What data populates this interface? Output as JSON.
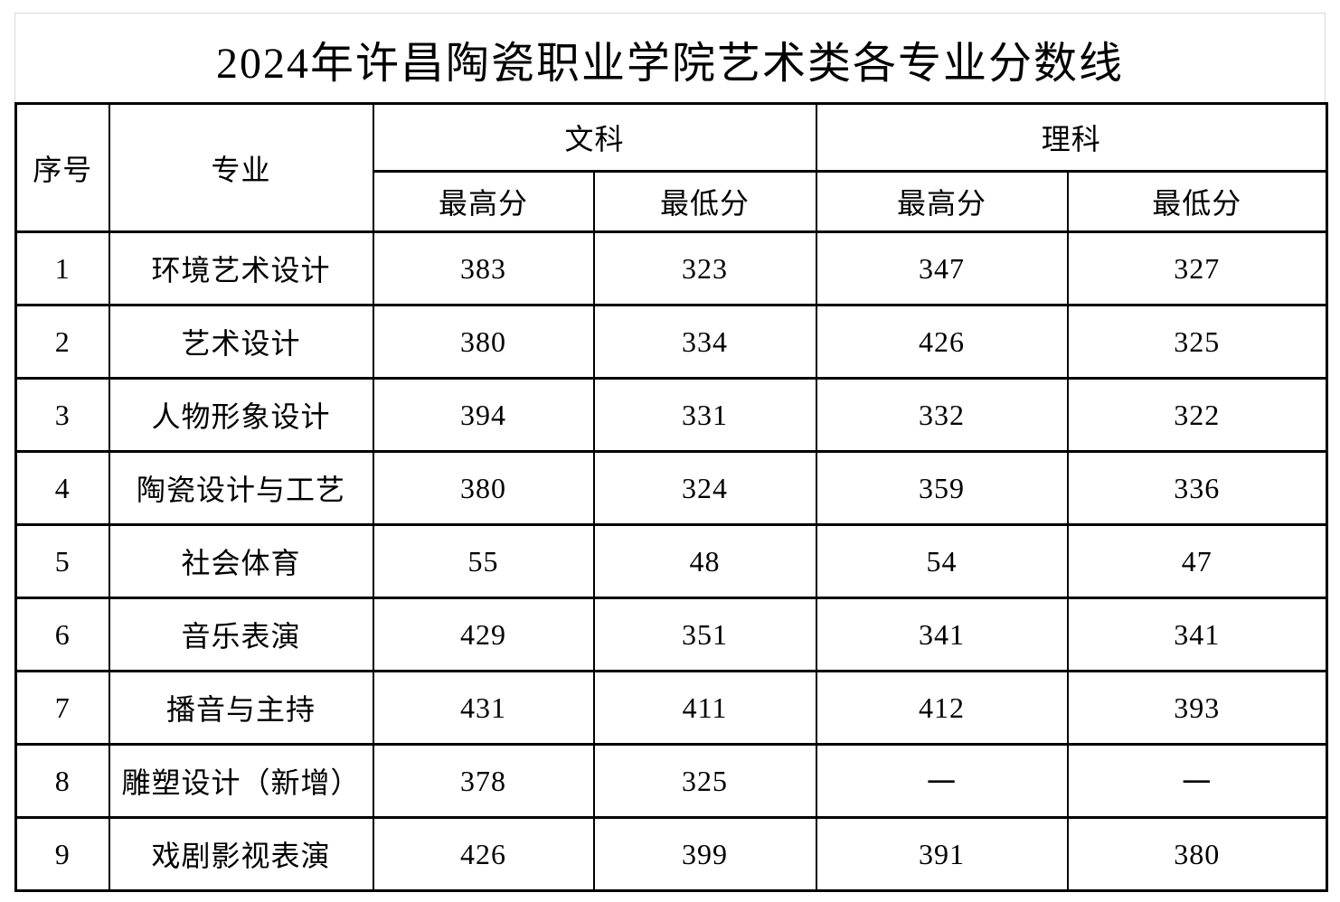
{
  "title": "2024年许昌陶瓷职业学院艺术类各专业分数线",
  "colors": {
    "table_border": "#000000",
    "title_box_border": "#d9d9d9",
    "background": "#ffffff",
    "text": "#000000"
  },
  "table": {
    "headers": {
      "index": "序号",
      "major": "专业",
      "liberal_arts": "文科",
      "science": "理科",
      "max_score": "最高分",
      "min_score": "最低分"
    },
    "rows": [
      {
        "no": "1",
        "major": "环境艺术设计",
        "wk_max": "383",
        "wk_min": "323",
        "lk_max": "347",
        "lk_min": "327"
      },
      {
        "no": "2",
        "major": "艺术设计",
        "wk_max": "380",
        "wk_min": "334",
        "lk_max": "426",
        "lk_min": "325"
      },
      {
        "no": "3",
        "major": "人物形象设计",
        "wk_max": "394",
        "wk_min": "331",
        "lk_max": "332",
        "lk_min": "322"
      },
      {
        "no": "4",
        "major": "陶瓷设计与工艺",
        "wk_max": "380",
        "wk_min": "324",
        "lk_max": "359",
        "lk_min": "336"
      },
      {
        "no": "5",
        "major": "社会体育",
        "wk_max": "55",
        "wk_min": "48",
        "lk_max": "54",
        "lk_min": "47"
      },
      {
        "no": "6",
        "major": "音乐表演",
        "wk_max": "429",
        "wk_min": "351",
        "lk_max": "341",
        "lk_min": "341"
      },
      {
        "no": "7",
        "major": "播音与主持",
        "wk_max": "431",
        "wk_min": "411",
        "lk_max": "412",
        "lk_min": "393"
      },
      {
        "no": "8",
        "major": "雕塑设计（新增）",
        "wk_max": "378",
        "wk_min": "325",
        "lk_max": "一",
        "lk_min": "一"
      },
      {
        "no": "9",
        "major": "戏剧影视表演",
        "wk_max": "426",
        "wk_min": "399",
        "lk_max": "391",
        "lk_min": "380"
      }
    ]
  }
}
